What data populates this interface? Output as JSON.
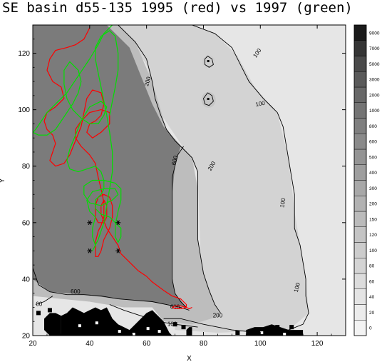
{
  "chart_data": {
    "type": "heatmap",
    "title": "SE basin d55-135 1995 (red) vs 1997 (green)",
    "xlabel": "X",
    "ylabel": "Y",
    "xlim": [
      20,
      130
    ],
    "ylim": [
      20,
      130
    ],
    "xticks": [
      20,
      40,
      60,
      80,
      100,
      120
    ],
    "yticks": [
      20,
      40,
      60,
      80,
      100,
      120
    ],
    "colorbar": {
      "levels": [
        "0",
        "20",
        "40",
        "60",
        "80",
        "100",
        "120",
        "150",
        "200",
        "300",
        "400",
        "500",
        "600",
        "800",
        "1000",
        "2000",
        "3000",
        "5000",
        "7000",
        "9000"
      ],
      "colors": [
        "#f3f3f3",
        "#ececec",
        "#e4e4e4",
        "#dcdcdc",
        "#d4d4d4",
        "#cccccc",
        "#c4c4c4",
        "#bbbbbb",
        "#b2b2b2",
        "#a8a8a8",
        "#9e9e9e",
        "#949494",
        "#8a8a8a",
        "#7f7f7f",
        "#747474",
        "#686868",
        "#5a5a5a",
        "#4a4a4a",
        "#353535",
        "#1a1a1a"
      ]
    },
    "contour_labels": [
      {
        "text": "100",
        "x": 100,
        "y": 102,
        "rot": -10
      },
      {
        "text": "100",
        "x": 99,
        "y": 120,
        "rot": -55
      },
      {
        "text": "200",
        "x": 60.5,
        "y": 110,
        "rot": -75
      },
      {
        "text": "200",
        "x": 83,
        "y": 80,
        "rot": -60
      },
      {
        "text": "100",
        "x": 108,
        "y": 67,
        "rot": -80
      },
      {
        "text": "100",
        "x": 113,
        "y": 37,
        "rot": -75
      },
      {
        "text": "200",
        "x": 85,
        "y": 27,
        "rot": 0
      },
      {
        "text": "100",
        "x": 69,
        "y": 24,
        "rot": 0
      },
      {
        "text": "600",
        "x": 70,
        "y": 82,
        "rot": -75
      },
      {
        "text": "600",
        "x": 35,
        "y": 35.5,
        "rot": 0
      },
      {
        "text": "00",
        "x": 22.2,
        "y": 31,
        "rot": 0
      },
      {
        "text": "600",
        "x": 70,
        "y": 30,
        "rot": 0
      }
    ],
    "contours": [
      {
        "level": 100,
        "points": [
          [
            76,
            130
          ],
          [
            84,
            127
          ],
          [
            90,
            122
          ],
          [
            93,
            116
          ],
          [
            96,
            110
          ],
          [
            101,
            104
          ],
          [
            106,
            99
          ],
          [
            108,
            94
          ],
          [
            109,
            88
          ],
          [
            110,
            82
          ],
          [
            111,
            76
          ],
          [
            112,
            70
          ],
          [
            112,
            64
          ],
          [
            112,
            58
          ],
          [
            114,
            52
          ],
          [
            115,
            46
          ],
          [
            116,
            40
          ],
          [
            116,
            34
          ],
          [
            117,
            28
          ],
          [
            115,
            24
          ],
          [
            110,
            22
          ],
          [
            100,
            21
          ],
          [
            90,
            22
          ],
          [
            80,
            24
          ],
          [
            72,
            26
          ],
          [
            66,
            26
          ]
        ]
      },
      {
        "level": 200,
        "points": [
          [
            50,
            130
          ],
          [
            56,
            124
          ],
          [
            60,
            118
          ],
          [
            62,
            110
          ],
          [
            63,
            104
          ],
          [
            65,
            98
          ],
          [
            67,
            93
          ],
          [
            70,
            89
          ],
          [
            73,
            86
          ],
          [
            76,
            83
          ],
          [
            78,
            78
          ],
          [
            78,
            72
          ],
          [
            78,
            66
          ],
          [
            78,
            60
          ],
          [
            78,
            54
          ],
          [
            79,
            48
          ],
          [
            80,
            42
          ],
          [
            82,
            36
          ],
          [
            84,
            31
          ],
          [
            86,
            28
          ]
        ]
      },
      {
        "level": 600,
        "points": [
          [
            73,
            87
          ],
          [
            71,
            84
          ],
          [
            70,
            80
          ],
          [
            69,
            76
          ],
          [
            69,
            70
          ],
          [
            69,
            64
          ],
          [
            69,
            58
          ],
          [
            69,
            52
          ],
          [
            69,
            46
          ],
          [
            69,
            40
          ],
          [
            70,
            35
          ],
          [
            72,
            32
          ],
          [
            74,
            30
          ]
        ]
      },
      {
        "level": 600,
        "points": [
          [
            20,
            44
          ],
          [
            22,
            38
          ],
          [
            26,
            35.5
          ],
          [
            32,
            34.5
          ],
          [
            38,
            34.5
          ],
          [
            44,
            34
          ],
          [
            50,
            33
          ],
          [
            56,
            32.5
          ],
          [
            62,
            32
          ],
          [
            67,
            31
          ],
          [
            72,
            30
          ],
          [
            75,
            29
          ]
        ]
      },
      {
        "level": 100,
        "points": [
          [
            27,
            34
          ],
          [
            24,
            32
          ],
          [
            21,
            31
          ]
        ]
      },
      {
        "level": 100,
        "points": [
          [
            47,
            31
          ],
          [
            52,
            29
          ],
          [
            58,
            27
          ],
          [
            64,
            25
          ],
          [
            70,
            24
          ],
          [
            78,
            23
          ]
        ]
      },
      {
        "level": 1000,
        "points": [
          [
            81.5,
            119
          ],
          [
            83,
            118
          ],
          [
            83.5,
            116
          ],
          [
            82,
            115
          ],
          [
            80.5,
            116
          ],
          [
            80.5,
            118
          ],
          [
            81.5,
            119
          ]
        ]
      },
      {
        "level": 1000,
        "points": [
          [
            81.5,
            106
          ],
          [
            83,
            105
          ],
          [
            83.5,
            103
          ],
          [
            82,
            101.5
          ],
          [
            80.5,
            102
          ],
          [
            80,
            104
          ],
          [
            81.5,
            106
          ]
        ]
      }
    ],
    "stations": [
      {
        "x": 40,
        "y": 60
      },
      {
        "x": 50,
        "y": 60
      },
      {
        "x": 40,
        "y": 50
      },
      {
        "x": 50,
        "y": 50
      }
    ],
    "series": [
      {
        "label": "1995",
        "color": "#ff0000",
        "points": [
          [
            40,
            129
          ],
          [
            38,
            125
          ],
          [
            35,
            123
          ],
          [
            32,
            122
          ],
          [
            28,
            121
          ],
          [
            26,
            118
          ],
          [
            25,
            114
          ],
          [
            27,
            110
          ],
          [
            30,
            108
          ],
          [
            31,
            104
          ],
          [
            28,
            101
          ],
          [
            25,
            99
          ],
          [
            24,
            96
          ],
          [
            25,
            93
          ],
          [
            27,
            91
          ],
          [
            28,
            88
          ],
          [
            27,
            85
          ],
          [
            26,
            82
          ],
          [
            28,
            80
          ],
          [
            31,
            81
          ],
          [
            33,
            84
          ],
          [
            35,
            89
          ],
          [
            37,
            94
          ],
          [
            38,
            99
          ],
          [
            39,
            104
          ],
          [
            41,
            107
          ],
          [
            44,
            106
          ],
          [
            45,
            102
          ],
          [
            44,
            98
          ],
          [
            42,
            96
          ],
          [
            40,
            95
          ],
          [
            39,
            92
          ],
          [
            41,
            90
          ],
          [
            44,
            92
          ],
          [
            47,
            95
          ],
          [
            47,
            99
          ],
          [
            44,
            100
          ],
          [
            40,
            99
          ],
          [
            37,
            96
          ],
          [
            35,
            93
          ],
          [
            35,
            90
          ],
          [
            37,
            87
          ],
          [
            40,
            84
          ],
          [
            42,
            81
          ],
          [
            43,
            76
          ],
          [
            44,
            72
          ],
          [
            45,
            67
          ],
          [
            45,
            62
          ],
          [
            44,
            59
          ],
          [
            43,
            57
          ],
          [
            42,
            53
          ],
          [
            42,
            50
          ],
          [
            42,
            48
          ],
          [
            43,
            48
          ],
          [
            44,
            50
          ],
          [
            45,
            54
          ],
          [
            47,
            58
          ],
          [
            48,
            62
          ],
          [
            48,
            66
          ],
          [
            47,
            69
          ],
          [
            45,
            70
          ],
          [
            43,
            69
          ],
          [
            42,
            66
          ],
          [
            42,
            62
          ],
          [
            43,
            60
          ],
          [
            45,
            60
          ],
          [
            46,
            62
          ],
          [
            46,
            66
          ],
          [
            45,
            68
          ],
          [
            44,
            66
          ],
          [
            44,
            63
          ],
          [
            46,
            58
          ],
          [
            48,
            55
          ],
          [
            50,
            52
          ],
          [
            51,
            49
          ],
          [
            53,
            47
          ],
          [
            55,
            45
          ],
          [
            57,
            43
          ],
          [
            60,
            41
          ],
          [
            62,
            39
          ],
          [
            66,
            36
          ],
          [
            69,
            34
          ],
          [
            72,
            33
          ],
          [
            74,
            31
          ],
          [
            74,
            30
          ],
          [
            72,
            29.5
          ],
          [
            70,
            29.5
          ],
          [
            69,
            30
          ],
          [
            70,
            30.5
          ],
          [
            72,
            30.5
          ],
          [
            74,
            30
          ],
          [
            75,
            29.5
          ],
          [
            76,
            30
          ]
        ]
      },
      {
        "label": "1997",
        "color": "#00e000",
        "points": [
          [
            48,
            130
          ],
          [
            45,
            127
          ],
          [
            43,
            123
          ],
          [
            40,
            118
          ],
          [
            36,
            112
          ],
          [
            32,
            106
          ],
          [
            28,
            102
          ],
          [
            25,
            99
          ],
          [
            23,
            96
          ],
          [
            21,
            93
          ],
          [
            20,
            92
          ],
          [
            22,
            91
          ],
          [
            25,
            91
          ],
          [
            28,
            93
          ],
          [
            30,
            96
          ],
          [
            32,
            99
          ],
          [
            34,
            102
          ],
          [
            36,
            106
          ],
          [
            37,
            110
          ],
          [
            36,
            114
          ],
          [
            33,
            117
          ],
          [
            31,
            114
          ],
          [
            31,
            109
          ],
          [
            32,
            104
          ],
          [
            34,
            100
          ],
          [
            37,
            97
          ],
          [
            40,
            95
          ],
          [
            43,
            95
          ],
          [
            45,
            98
          ],
          [
            46,
            101
          ],
          [
            44,
            103
          ],
          [
            40,
            101
          ],
          [
            37,
            96
          ],
          [
            35,
            91
          ],
          [
            33,
            86
          ],
          [
            32,
            82
          ],
          [
            33,
            79
          ],
          [
            36,
            78
          ],
          [
            39,
            79
          ],
          [
            42,
            80
          ],
          [
            44,
            78
          ],
          [
            45,
            75
          ],
          [
            45,
            72
          ],
          [
            44,
            70
          ],
          [
            42,
            68
          ],
          [
            42,
            65
          ],
          [
            44,
            63
          ],
          [
            47,
            62
          ],
          [
            49,
            60
          ],
          [
            51,
            58
          ],
          [
            51,
            55
          ],
          [
            50,
            53
          ],
          [
            49,
            55
          ],
          [
            49,
            59
          ],
          [
            50,
            64
          ],
          [
            51,
            68
          ],
          [
            51,
            72
          ],
          [
            49,
            74
          ],
          [
            45,
            75
          ],
          [
            41,
            75
          ],
          [
            38,
            73
          ],
          [
            38,
            70
          ],
          [
            40,
            67
          ],
          [
            44,
            66
          ],
          [
            48,
            68
          ],
          [
            50,
            70
          ],
          [
            49,
            72
          ],
          [
            45,
            72
          ],
          [
            41,
            71
          ],
          [
            39,
            68
          ],
          [
            40,
            64
          ],
          [
            42,
            62
          ],
          [
            41,
            58
          ],
          [
            41,
            55
          ],
          [
            42,
            52
          ],
          [
            41,
            50
          ],
          [
            43,
            54
          ],
          [
            45,
            60
          ],
          [
            46,
            66
          ],
          [
            47,
            72
          ],
          [
            48,
            78
          ],
          [
            48,
            85
          ],
          [
            47,
            92
          ],
          [
            46,
            98
          ],
          [
            45,
            103
          ],
          [
            44,
            108
          ],
          [
            43,
            113
          ],
          [
            42,
            118
          ],
          [
            42,
            122
          ],
          [
            44,
            126
          ],
          [
            47,
            128
          ],
          [
            49,
            126
          ],
          [
            50,
            120
          ],
          [
            50,
            114
          ],
          [
            49,
            108
          ],
          [
            48,
            103
          ],
          [
            47,
            98
          ]
        ]
      }
    ]
  }
}
